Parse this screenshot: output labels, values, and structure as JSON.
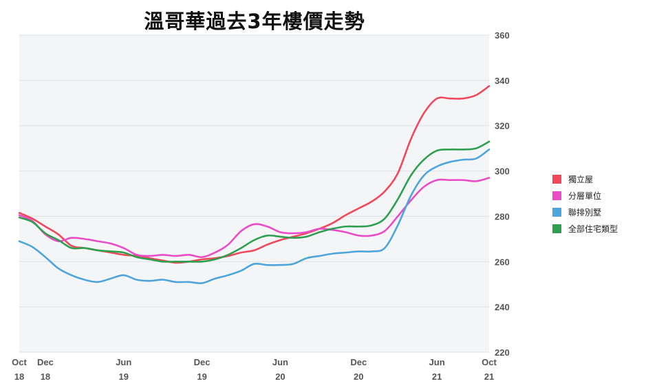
{
  "chart_data": {
    "type": "line",
    "title": "溫哥華過去3年樓價走勢",
    "xlabel": "",
    "ylabel": "",
    "ylim": [
      220,
      360
    ],
    "y_ticks": [
      220,
      240,
      260,
      280,
      300,
      320,
      340,
      360
    ],
    "y_axis_side": "right",
    "grid": true,
    "legend_position": "right",
    "x_ticks": [
      {
        "x": 0,
        "label": [
          "Oct",
          "18"
        ]
      },
      {
        "x": 2,
        "label": [
          "Dec",
          "18"
        ]
      },
      {
        "x": 8,
        "label": [
          "Jun",
          "19"
        ]
      },
      {
        "x": 14,
        "label": [
          "Dec",
          "19"
        ]
      },
      {
        "x": 20,
        "label": [
          "Jun",
          "20"
        ]
      },
      {
        "x": 26,
        "label": [
          "Dec",
          "20"
        ]
      },
      {
        "x": 32,
        "label": [
          "Jun",
          "21"
        ]
      },
      {
        "x": 36,
        "label": [
          "Oct",
          "21"
        ]
      }
    ],
    "series": [
      {
        "name": "獨立屋",
        "color": "#f0485a",
        "values": [
          281.5,
          279,
          275.5,
          272,
          267,
          266,
          265,
          264,
          263,
          262.5,
          261.5,
          260.5,
          259.5,
          260,
          261,
          261.5,
          262.5,
          264,
          265,
          267.5,
          269.5,
          271,
          272.5,
          274.5,
          277,
          280.5,
          283.5,
          286.5,
          291,
          299,
          314,
          325.5,
          332,
          332,
          332,
          333.5,
          337.5
        ]
      },
      {
        "name": "分層單位",
        "color": "#ea4cc8",
        "values": [
          280.5,
          278,
          272,
          269,
          270.5,
          270,
          269,
          268,
          266,
          263,
          262.5,
          263,
          262.5,
          263,
          262,
          264,
          267.5,
          273.5,
          276.5,
          275.5,
          273,
          272.5,
          273,
          274.5,
          274,
          273,
          271.5,
          271.5,
          273.5,
          280,
          287,
          293,
          296,
          296,
          296,
          295.5,
          297
        ]
      },
      {
        "name": "聯排別墅",
        "color": "#4ea4dc",
        "values": [
          269,
          266.5,
          262,
          257,
          254,
          252,
          251,
          252.5,
          254,
          252,
          251.5,
          252,
          251,
          251,
          250.5,
          252.5,
          254,
          256,
          259,
          258.5,
          258.5,
          259,
          261.5,
          262.5,
          263.5,
          264,
          264.5,
          264.5,
          266,
          276,
          289,
          298,
          302,
          304,
          305,
          305.5,
          309.5
        ]
      },
      {
        "name": "全部住宅類型",
        "color": "#2d9f4f",
        "values": [
          279.5,
          277.5,
          272.5,
          269.5,
          266,
          266,
          265,
          264.5,
          264,
          262,
          261,
          260,
          260,
          260,
          260,
          261,
          263,
          266,
          269.5,
          271.5,
          271,
          270.5,
          271,
          273,
          274.5,
          275.5,
          275.5,
          276,
          279,
          287.5,
          298,
          305,
          309,
          309.5,
          309.5,
          310,
          313
        ]
      }
    ]
  }
}
